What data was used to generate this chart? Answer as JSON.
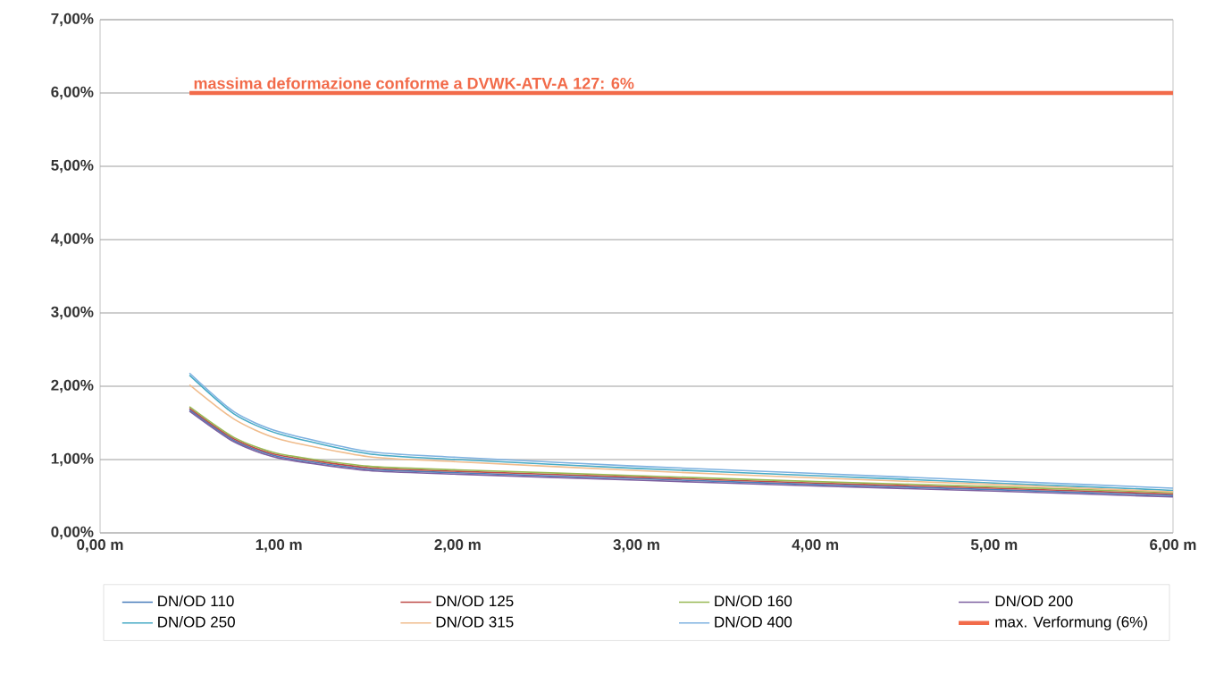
{
  "chart_data": {
    "type": "line",
    "xlim": [
      0,
      6
    ],
    "ylim": [
      0,
      7
    ],
    "xticks": [
      {
        "value": 0,
        "label": "0,00 m"
      },
      {
        "value": 1,
        "label": "1,00 m"
      },
      {
        "value": 2,
        "label": "2,00 m"
      },
      {
        "value": 3,
        "label": "3,00 m"
      },
      {
        "value": 4,
        "label": "4,00 m"
      },
      {
        "value": 5,
        "label": "5,00 m"
      },
      {
        "value": 6,
        "label": "6,00 m"
      }
    ],
    "yticks": [
      {
        "value": 0,
        "label": "0,00%"
      },
      {
        "value": 1,
        "label": "1,00%"
      },
      {
        "value": 2,
        "label": "2,00%"
      },
      {
        "value": 3,
        "label": "3,00%"
      },
      {
        "value": 4,
        "label": "4,00%"
      },
      {
        "value": 5,
        "label": "5,00%"
      },
      {
        "value": 6,
        "label": "6,00%"
      },
      {
        "value": 7,
        "label": "7,00%"
      }
    ],
    "grid": "y",
    "legend": "bottom",
    "marker": "none",
    "line_style": "solid",
    "x": [
      0.5,
      0.75,
      1,
      1.5,
      2,
      3,
      4,
      5,
      6
    ],
    "series": [
      {
        "name": "DN/OD 110",
        "color": "#4a7ebb",
        "values": [
          1.68,
          1.26,
          1.04,
          0.87,
          0.82,
          0.74,
          0.66,
          0.59,
          0.51
        ]
      },
      {
        "name": "DN/OD 125",
        "color": "#be4b48",
        "values": [
          1.7,
          1.28,
          1.06,
          0.89,
          0.84,
          0.76,
          0.68,
          0.61,
          0.53
        ]
      },
      {
        "name": "DN/OD 160",
        "color": "#98b954",
        "values": [
          1.72,
          1.3,
          1.08,
          0.91,
          0.86,
          0.78,
          0.7,
          0.63,
          0.55
        ]
      },
      {
        "name": "DN/OD 200",
        "color": "#7d60a0",
        "values": [
          1.66,
          1.24,
          1.02,
          0.85,
          0.8,
          0.72,
          0.64,
          0.57,
          0.49
        ]
      },
      {
        "name": "DN/OD 250",
        "color": "#46aac5",
        "values": [
          2.15,
          1.62,
          1.35,
          1.08,
          1.0,
          0.88,
          0.78,
          0.68,
          0.58
        ]
      },
      {
        "name": "DN/OD 315",
        "color": "#f0bc8c",
        "values": [
          2.02,
          1.55,
          1.28,
          1.04,
          0.97,
          0.85,
          0.75,
          0.66,
          0.56
        ]
      },
      {
        "name": "DN/OD 400",
        "color": "#7eb1e0",
        "values": [
          2.18,
          1.65,
          1.38,
          1.11,
          1.03,
          0.91,
          0.81,
          0.71,
          0.61
        ]
      },
      {
        "name": "max. Verformung (6%)",
        "color": "#f26b4a",
        "x": [
          0.5,
          6
        ],
        "values": [
          6,
          6
        ]
      }
    ],
    "annotations": [
      {
        "text": "massima deformazione conforme a DVWK-ATV-A 127: 6%",
        "x": 0.5,
        "y": 6
      }
    ]
  }
}
